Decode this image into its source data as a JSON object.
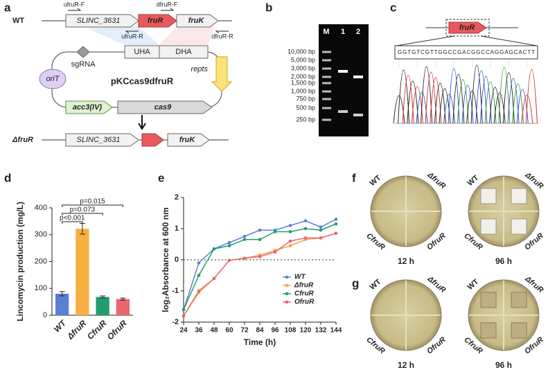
{
  "panels": [
    "a",
    "b",
    "c",
    "d",
    "e",
    "f",
    "g"
  ],
  "diagram": {
    "wt_label": "WT",
    "mutant_label": "ΔfruR",
    "primers": [
      "ufruR-F",
      "dfruR-F",
      "ufruR-R",
      "dfruR-R"
    ],
    "genes": [
      "SLINC_3631",
      "fruR",
      "fruK"
    ],
    "plasmid": {
      "name": "pKCcas9dfruR",
      "sgrna": "sgRNA",
      "uha": "UHA",
      "dha": "DHA",
      "orit": "oriT",
      "repts": "repts",
      "acc": "acc3(IV)",
      "cas9": "cas9"
    }
  },
  "gel": {
    "lanes": [
      "M",
      "1",
      "2"
    ],
    "ladder": [
      "10,000 bp",
      "5,000 bp",
      "3,000 bp",
      "2,000 bp",
      "1,500 bp",
      "1,000 bp",
      "750 bp",
      "500 bp",
      "250 bp"
    ]
  },
  "sequence": {
    "gene": "fruR",
    "bases": "GGTGTCGTTGGCCGACGGCCAGGAGCACTT"
  },
  "plates": {
    "strains": [
      "WT",
      "ΔfruR",
      "CfruR",
      "OfruR"
    ],
    "times": [
      "12 h",
      "96 h"
    ]
  },
  "chart_data": [
    {
      "type": "bar",
      "categories": [
        "WT",
        "ΔfruR",
        "CfruR",
        "OfruR"
      ],
      "values": [
        80,
        322,
        68,
        60
      ],
      "errors": [
        8,
        20,
        4,
        4
      ],
      "colors": [
        "#5b7fd6",
        "#f9b042",
        "#1f9e6e",
        "#e9666a"
      ],
      "ylabel": "Lincomycin production (mg/L)",
      "ylim": [
        0,
        400
      ],
      "yticks": [
        0,
        100,
        200,
        300,
        400
      ],
      "annotations": [
        "p<0.001",
        "p=0.073",
        "p=0.015"
      ]
    },
    {
      "type": "line",
      "x": [
        24,
        36,
        48,
        60,
        72,
        84,
        96,
        108,
        120,
        132,
        144
      ],
      "xlim": [
        24,
        144
      ],
      "xticks": [
        24,
        36,
        48,
        60,
        72,
        84,
        96,
        108,
        120,
        132,
        144
      ],
      "ylim": [
        -2,
        2
      ],
      "yticks": [
        -2,
        -1,
        0,
        1,
        2
      ],
      "xlabel": "Time (h)",
      "ylabel": "log₂Absorbance at 600 nm",
      "series": [
        {
          "name": "WT",
          "color": "#5b7fd6",
          "values": [
            -1.6,
            -0.1,
            0.35,
            0.55,
            0.75,
            0.95,
            0.95,
            1.1,
            1.25,
            1.05,
            1.3
          ]
        },
        {
          "name": "ΔfruR",
          "color": "#f5a34a",
          "values": [
            -1.8,
            -1.05,
            -0.6,
            -0.02,
            0.05,
            0.15,
            0.3,
            0.45,
            0.65,
            0.7,
            0.85
          ]
        },
        {
          "name": "CfruR",
          "color": "#1f9e6e",
          "values": [
            -1.6,
            -0.5,
            0.35,
            0.45,
            0.65,
            0.65,
            0.9,
            0.9,
            1.0,
            0.95,
            1.15
          ]
        },
        {
          "name": "OfruR",
          "color": "#e9666a",
          "values": [
            -1.8,
            -1.0,
            -0.6,
            -0.02,
            0.05,
            0.1,
            0.25,
            0.6,
            0.7,
            0.7,
            0.85
          ]
        }
      ]
    }
  ]
}
